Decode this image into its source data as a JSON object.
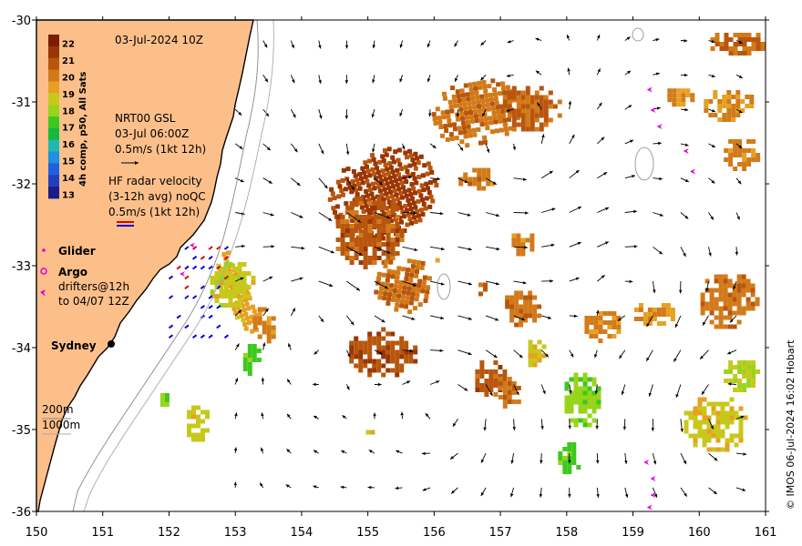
{
  "header": {
    "date_label": "03-Jul-2024 10Z"
  },
  "colorbar": {
    "title": "4h comp, p50, All Sats",
    "ticks": [
      "22",
      "21",
      "20",
      "19",
      "18",
      "17",
      "16",
      "15",
      "14",
      "13"
    ],
    "colors": [
      "#7a1e04",
      "#9a3606",
      "#b8560e",
      "#d27a1a",
      "#e7a022",
      "#c8c81c",
      "#98d41c",
      "#3ec81e",
      "#18b83e",
      "#20b8b0",
      "#2090e0",
      "#2060e0",
      "#2040c0",
      "#1a1c8c"
    ]
  },
  "current_legend": {
    "gsl_title": "NRT00 GSL",
    "gsl_time": "03-Jul 06:00Z",
    "gsl_scale": "0.5m/s (1kt 12h)",
    "hf_title": "HF radar velocity",
    "hf_avg": "(3-12h avg) noQC",
    "hf_scale": "0.5m/s (1kt 12h)"
  },
  "platform_legend": {
    "glider": "Glider",
    "argo": "Argo",
    "drifters_line1": "drifters@12h",
    "drifters_line2": "to 04/07 12Z"
  },
  "places": {
    "city": "Sydney"
  },
  "bathymetry": {
    "contour_200": "200m",
    "contour_1000": "1000m"
  },
  "axes": {
    "x_ticks": [
      "150",
      "151",
      "152",
      "153",
      "154",
      "155",
      "156",
      "157",
      "158",
      "159",
      "160",
      "161"
    ],
    "y_ticks": [
      "-30",
      "-31",
      "-32",
      "-33",
      "-34",
      "-35",
      "-36"
    ],
    "x_range": [
      150,
      161
    ],
    "y_range": [
      -36,
      -30
    ]
  },
  "credit": "© IMOS 06-Jul-2024 16:02 Hobart",
  "colors": {
    "land": "#fdbf8a",
    "coast": "#000000",
    "sea": "#ffffff"
  },
  "sst_patches": [
    {
      "lon": 155.2,
      "lat": -32.1,
      "rx": 0.85,
      "ry": 0.55,
      "temp": 21.5,
      "rot": -20
    },
    {
      "lon": 155.0,
      "lat": -32.55,
      "rx": 0.55,
      "ry": 0.45,
      "temp": 21.0,
      "rot": 0
    },
    {
      "lon": 155.5,
      "lat": -33.2,
      "rx": 0.45,
      "ry": 0.35,
      "temp": 20.6,
      "rot": 10
    },
    {
      "lon": 155.2,
      "lat": -34.05,
      "rx": 0.55,
      "ry": 0.3,
      "temp": 21.2,
      "rot": 0
    },
    {
      "lon": 156.6,
      "lat": -31.1,
      "rx": 0.7,
      "ry": 0.4,
      "temp": 20.5,
      "rot": -10
    },
    {
      "lon": 157.4,
      "lat": -31.05,
      "rx": 0.5,
      "ry": 0.3,
      "temp": 20.7,
      "rot": 0
    },
    {
      "lon": 156.6,
      "lat": -31.9,
      "rx": 0.3,
      "ry": 0.15,
      "temp": 20.3,
      "rot": 0
    },
    {
      "lon": 160.55,
      "lat": -30.25,
      "rx": 0.45,
      "ry": 0.15,
      "temp": 20.6,
      "rot": 0
    },
    {
      "lon": 160.4,
      "lat": -31.0,
      "rx": 0.4,
      "ry": 0.2,
      "temp": 20.0,
      "rot": 0
    },
    {
      "lon": 160.6,
      "lat": -31.6,
      "rx": 0.3,
      "ry": 0.2,
      "temp": 20.2,
      "rot": 0
    },
    {
      "lon": 159.7,
      "lat": -30.9,
      "rx": 0.25,
      "ry": 0.12,
      "temp": 20.0,
      "rot": 0
    },
    {
      "lon": 157.3,
      "lat": -33.5,
      "rx": 0.3,
      "ry": 0.25,
      "temp": 20.4,
      "rot": 0
    },
    {
      "lon": 156.8,
      "lat": -34.35,
      "rx": 0.25,
      "ry": 0.25,
      "temp": 21.0,
      "rot": 0
    },
    {
      "lon": 157.1,
      "lat": -34.5,
      "rx": 0.2,
      "ry": 0.2,
      "temp": 20.5,
      "rot": 0
    },
    {
      "lon": 157.3,
      "lat": -32.7,
      "rx": 0.2,
      "ry": 0.15,
      "temp": 20.3,
      "rot": 0
    },
    {
      "lon": 158.5,
      "lat": -33.7,
      "rx": 0.3,
      "ry": 0.2,
      "temp": 20.2,
      "rot": 0
    },
    {
      "lon": 159.3,
      "lat": -33.55,
      "rx": 0.35,
      "ry": 0.15,
      "temp": 19.8,
      "rot": 0
    },
    {
      "lon": 160.4,
      "lat": -33.4,
      "rx": 0.45,
      "ry": 0.35,
      "temp": 20.4,
      "rot": 0
    },
    {
      "lon": 153.0,
      "lat": -33.3,
      "rx": 0.2,
      "ry": 0.55,
      "temp": 19.5,
      "rot": -20
    },
    {
      "lon": 153.4,
      "lat": -33.7,
      "rx": 0.2,
      "ry": 0.25,
      "temp": 20.2,
      "rot": 0
    },
    {
      "lon": 152.9,
      "lat": -33.2,
      "rx": 0.35,
      "ry": 0.3,
      "temp": 18.8,
      "rot": 0
    },
    {
      "lon": 160.2,
      "lat": -34.9,
      "rx": 0.5,
      "ry": 0.35,
      "temp": 19.0,
      "rot": 0
    },
    {
      "lon": 160.6,
      "lat": -34.3,
      "rx": 0.3,
      "ry": 0.2,
      "temp": 18.6,
      "rot": 0
    },
    {
      "lon": 158.2,
      "lat": -34.6,
      "rx": 0.3,
      "ry": 0.35,
      "temp": 18.0,
      "rot": 0
    },
    {
      "lon": 157.5,
      "lat": -34.05,
      "rx": 0.15,
      "ry": 0.2,
      "temp": 19.2,
      "rot": 0
    },
    {
      "lon": 156.7,
      "lat": -33.25,
      "rx": 0.1,
      "ry": 0.1,
      "temp": 21.0,
      "rot": 0
    },
    {
      "lon": 152.4,
      "lat": -34.9,
      "rx": 0.2,
      "ry": 0.25,
      "temp": 18.8,
      "rot": 0
    },
    {
      "lon": 153.2,
      "lat": -34.1,
      "rx": 0.15,
      "ry": 0.2,
      "temp": 17.5,
      "rot": 0
    },
    {
      "lon": 155.0,
      "lat": -35.0,
      "rx": 0.1,
      "ry": 0.05,
      "temp": 19.2,
      "rot": 0
    },
    {
      "lon": 158.0,
      "lat": -35.3,
      "rx": 0.2,
      "ry": 0.2,
      "temp": 17.5,
      "rot": 0
    },
    {
      "lon": 156.0,
      "lat": -32.9,
      "rx": 0.05,
      "ry": 0.05,
      "temp": 20.2,
      "rot": 0
    },
    {
      "lon": 151.9,
      "lat": -34.6,
      "rx": 0.1,
      "ry": 0.1,
      "temp": 17.5,
      "rot": 0
    }
  ],
  "drifters": [
    {
      "lon": 159.25,
      "lat": -30.85
    },
    {
      "lon": 159.3,
      "lat": -31.1
    },
    {
      "lon": 159.4,
      "lat": -31.3
    },
    {
      "lon": 159.8,
      "lat": -31.6
    },
    {
      "lon": 159.9,
      "lat": -31.85
    },
    {
      "lon": 159.2,
      "lat": -35.4
    },
    {
      "lon": 159.3,
      "lat": -35.6
    },
    {
      "lon": 159.3,
      "lat": -35.8
    },
    {
      "lon": 159.25,
      "lat": -35.95
    },
    {
      "lon": 152.35,
      "lat": -32.75
    },
    {
      "lon": 152.2,
      "lat": -33.1
    }
  ]
}
